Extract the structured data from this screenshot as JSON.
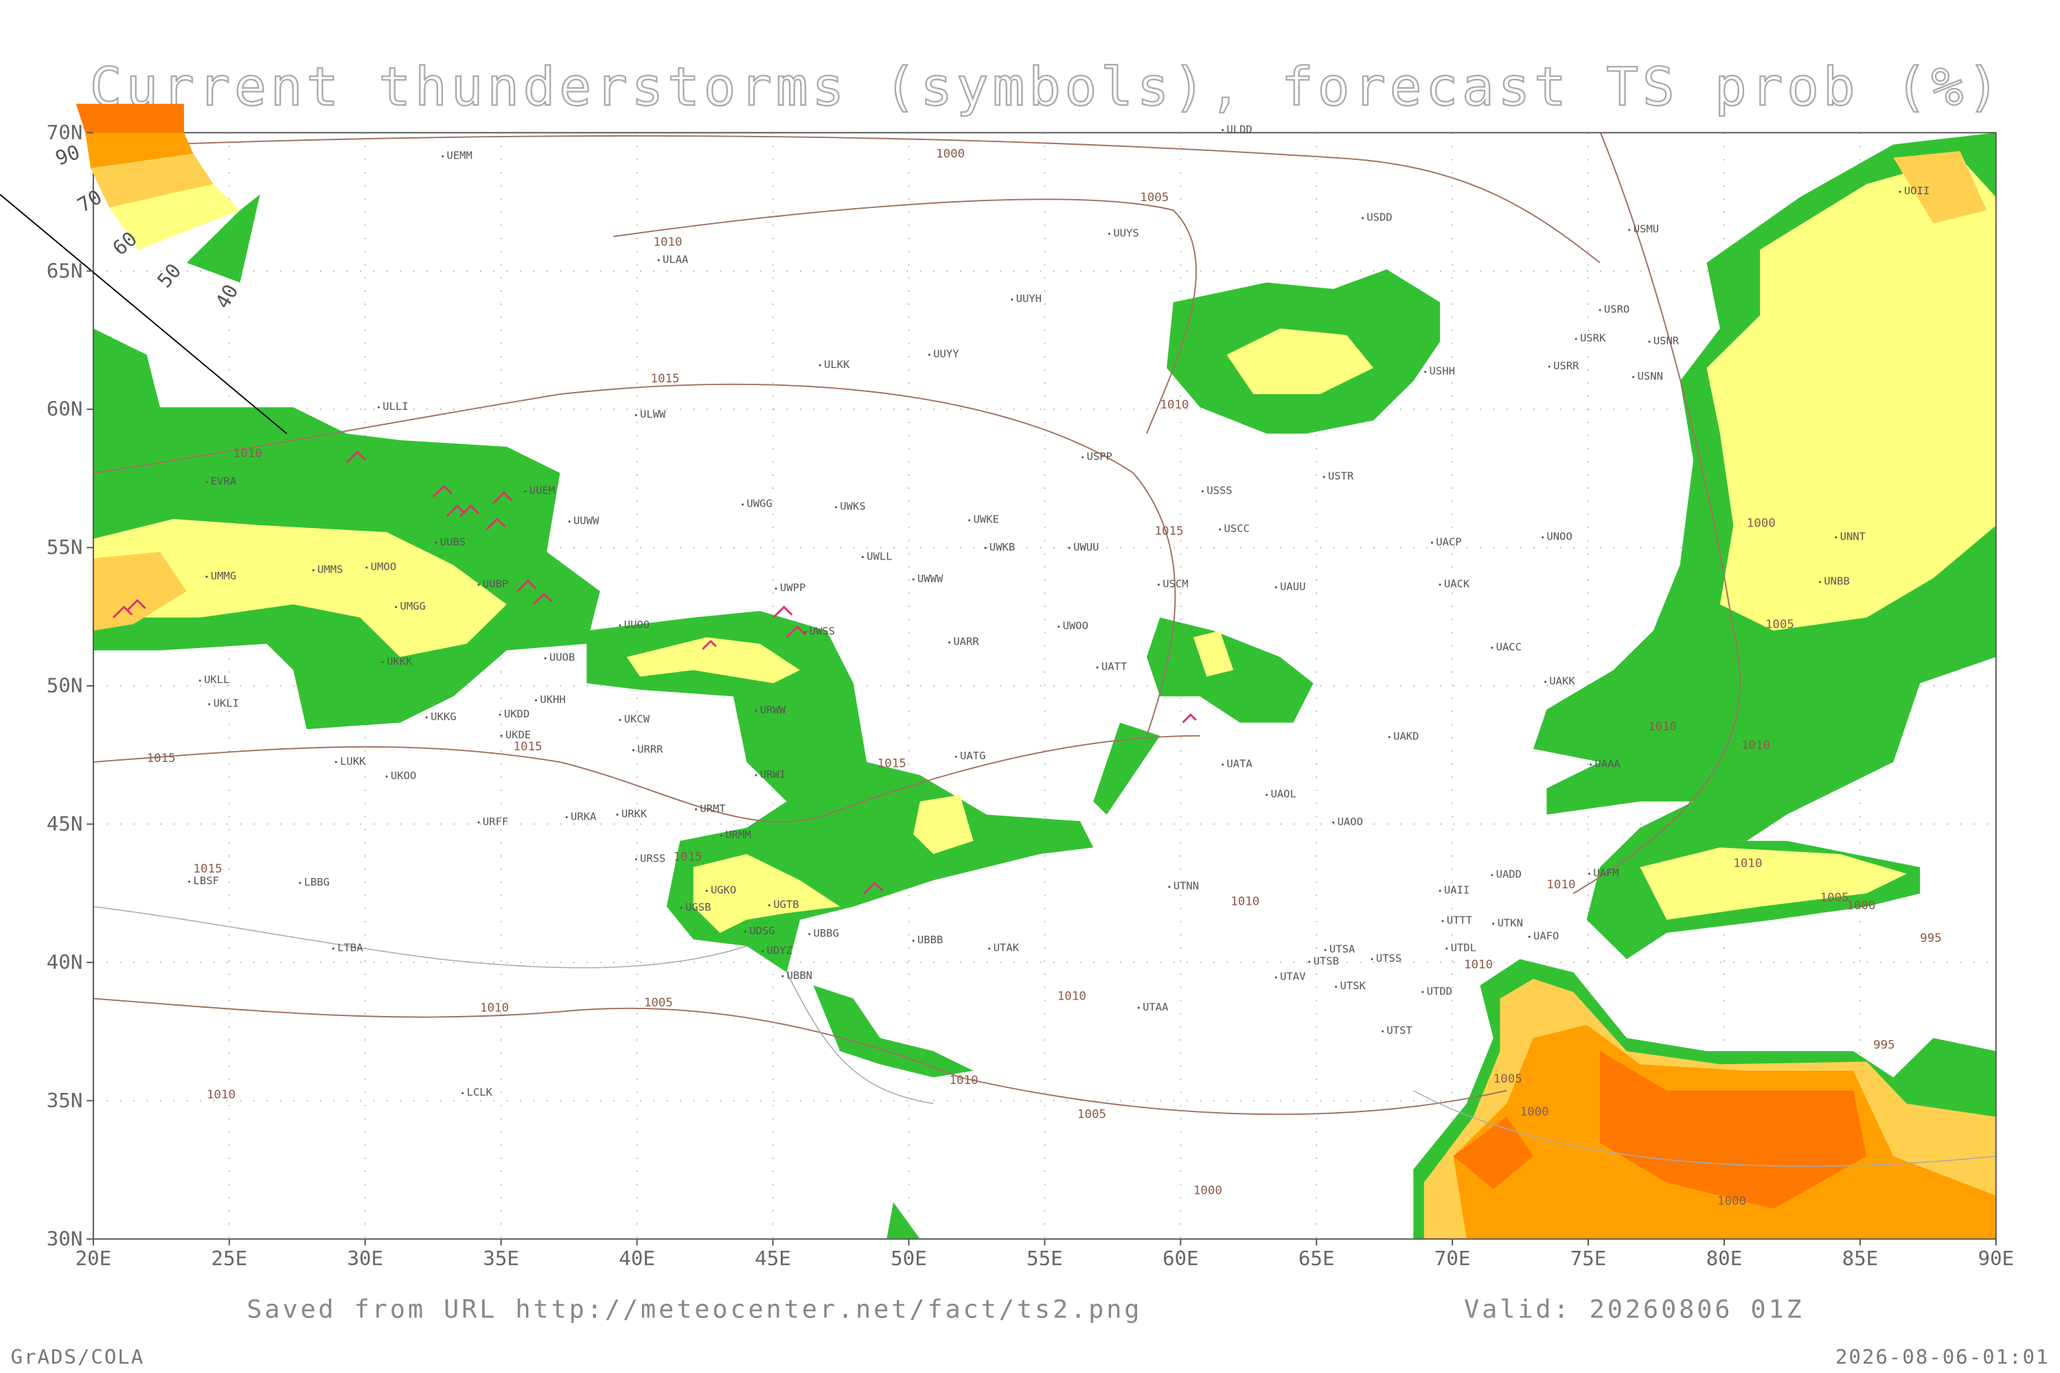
{
  "title": "Current thunderstorms (symbols), forecast TS prob (%)",
  "legend": {
    "labels": [
      "90",
      "70",
      "60",
      "50",
      "40"
    ]
  },
  "axes": {
    "lon_labels": [
      "20E",
      "25E",
      "30E",
      "35E",
      "40E",
      "45E",
      "50E",
      "55E",
      "60E",
      "65E",
      "70E",
      "75E",
      "80E",
      "85E",
      "90E"
    ],
    "lat_labels": [
      "70N",
      "65N",
      "60N",
      "55N",
      "50N",
      "45N",
      "40N",
      "35N",
      "30N"
    ]
  },
  "stations": [
    "ULDD",
    "UEMM",
    "USDD",
    "UUYS",
    "ULAA",
    "USMU",
    "UOII",
    "UUYH",
    "USRO",
    "UUYY",
    "ULKK",
    "USRK",
    "USNR",
    "USRR",
    "USHH",
    "USNN",
    "ULLI",
    "ULWW",
    "USPP",
    "EVRA",
    "UUEM",
    "USSS",
    "USTR",
    "UWGG",
    "UWKS",
    "UUWW",
    "UWKE",
    "USCC",
    "UNOO",
    "UACP",
    "UNNT",
    "UMMS",
    "UMOO",
    "UMMG",
    "UUBS",
    "UWKB",
    "UWUU",
    "UWLL",
    "UWWW",
    "USCM",
    "UAUU",
    "UACK",
    "UNBB",
    "UMGG",
    "UUBP",
    "UWPP",
    "UWSS",
    "UUOO",
    "UARR",
    "UWOO",
    "UATT",
    "UACC",
    "UAKK",
    "UKLL",
    "UKLI",
    "UUOB",
    "UKKK",
    "UKHH",
    "UKKG",
    "UKDD",
    "UKCW",
    "UKDE",
    "URWW",
    "URRR",
    "UATG",
    "UAKD",
    "UAAA",
    "LUKK",
    "UKOO",
    "UATA",
    "URWI",
    "UAOL",
    "URFF",
    "URKA",
    "URKK",
    "URMT",
    "UAOO",
    "URMM",
    "URSS",
    "LBSF",
    "LBBG",
    "UGKO",
    "UGTB",
    "UGSB",
    "UTNN",
    "UAII",
    "UADD",
    "UAFM",
    "UTTT",
    "UTKN",
    "UAFO",
    "UDSG",
    "UBBG",
    "LTBA",
    "UDYZ",
    "UBBB",
    "UTAK",
    "UTSA",
    "UTSB",
    "UTSS",
    "UTDL",
    "UBBN",
    "UTAV",
    "UTSK",
    "UTDD",
    "UTAA",
    "UTST",
    "LCLK"
  ],
  "isobar_labels": [
    "1000",
    "1005",
    "1010",
    "1015",
    "1010",
    "1010",
    "1015",
    "1000",
    "1005",
    "1010",
    "1010",
    "1015",
    "1015",
    "1015",
    "1015",
    "1015",
    "1010",
    "1010",
    "1005",
    "1000",
    "1010",
    "995",
    "1010",
    "1005",
    "1010",
    "1010",
    "995",
    "1010",
    "1005",
    "1010",
    "1000",
    "1005",
    "1000",
    "1000"
  ],
  "footer": {
    "source": "Saved from URL http://meteocenter.net/fact/ts2.png",
    "valid": "Valid: 20260806 01Z",
    "software": "GrADS/COLA",
    "timestamp": "2026-08-06-01:01"
  }
}
